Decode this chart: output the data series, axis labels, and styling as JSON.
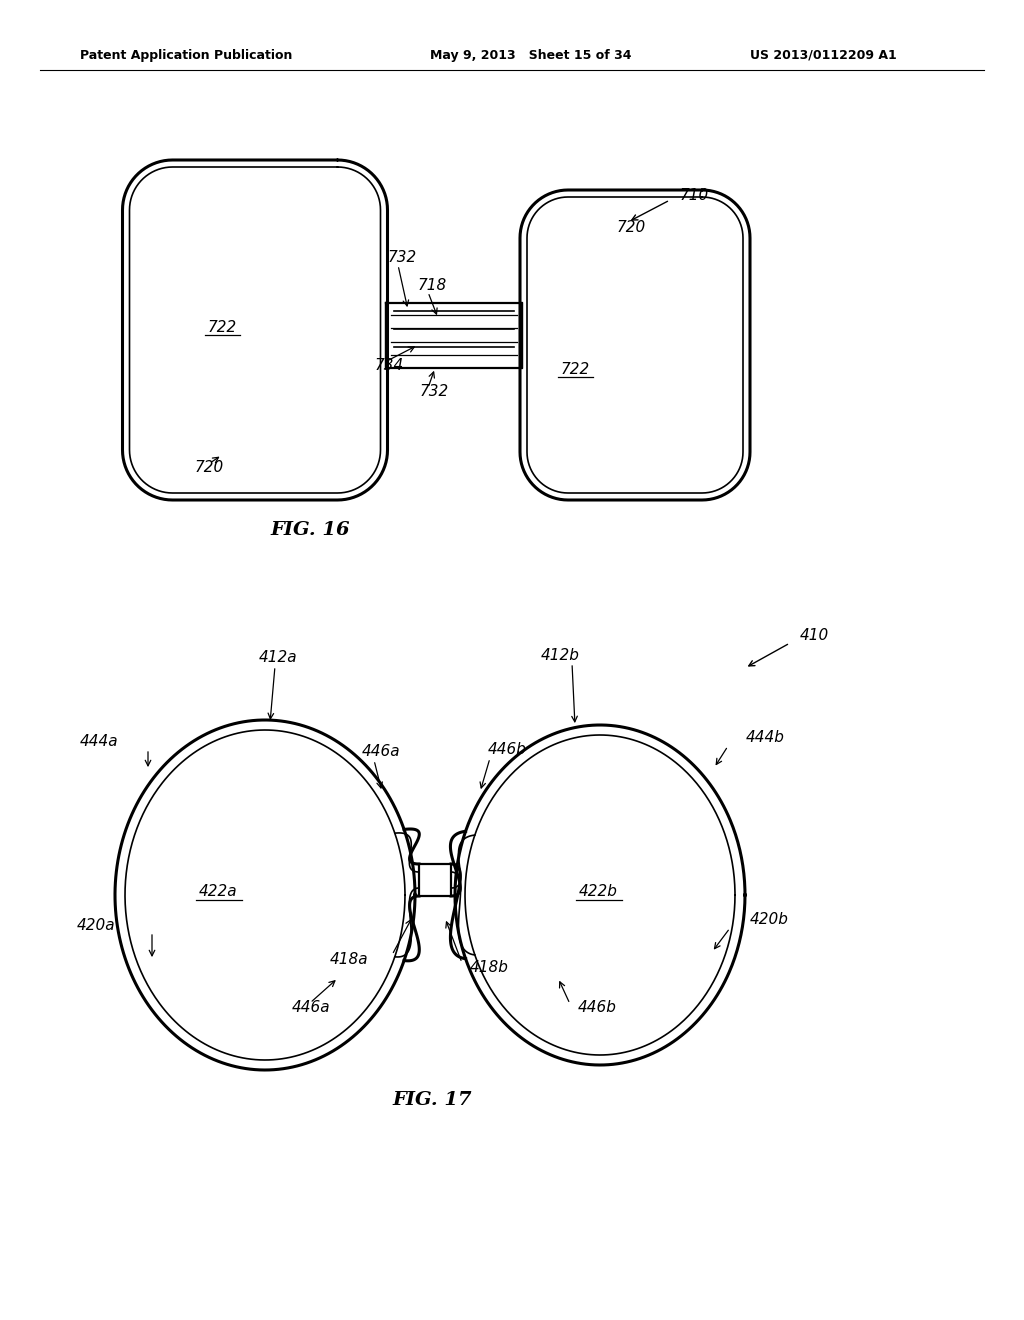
{
  "background_color": "#ffffff",
  "header_left": "Patent Application Publication",
  "header_mid": "May 9, 2013   Sheet 15 of 34",
  "header_right": "US 2013/0112209 A1",
  "fig16_caption": "FIG. 16",
  "fig17_caption": "FIG. 17"
}
